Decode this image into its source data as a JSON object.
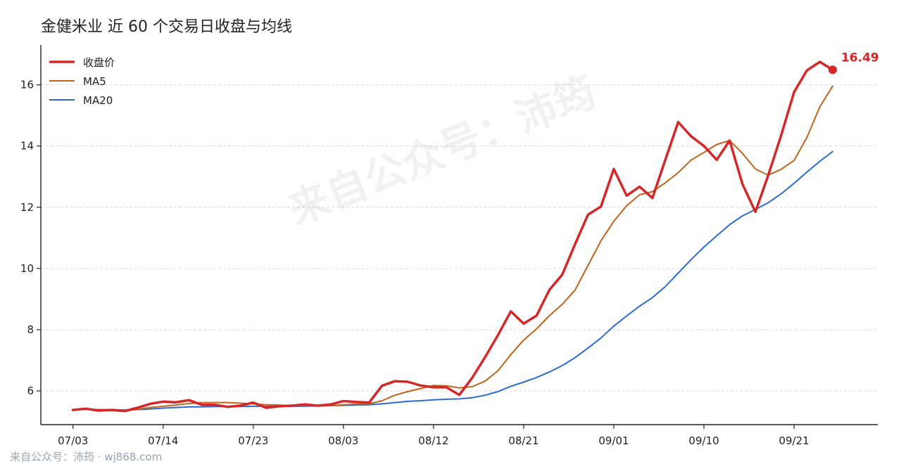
{
  "title": "金健米业 近 60 个交易日收盘与均线",
  "watermark": "来自公众号：沛筠",
  "footer": "来自公众号：沛筠 · wj868.com",
  "chart_data": {
    "type": "line",
    "title": "金健米业 近 60 个交易日收盘与均线",
    "ylim": [
      4.9,
      17.3
    ],
    "xlim": [
      -2.5,
      62.5
    ],
    "yticks": [
      6,
      8,
      10,
      12,
      14,
      16
    ],
    "xticks": [
      {
        "index": 0,
        "label": "07/03"
      },
      {
        "index": 7,
        "label": "07/14"
      },
      {
        "index": 14,
        "label": "07/23"
      },
      {
        "index": 21,
        "label": "08/03"
      },
      {
        "index": 28,
        "label": "08/12"
      },
      {
        "index": 35,
        "label": "08/21"
      },
      {
        "index": 42,
        "label": "09/01"
      },
      {
        "index": 49,
        "label": "09/10"
      },
      {
        "index": 56,
        "label": "09/21"
      }
    ],
    "grid": "horizontal",
    "legend_position": "top-left",
    "last_label": "16.49",
    "series": [
      {
        "name": "收盘价",
        "color": "#d62728",
        "width": 3.5,
        "values": [
          5.38,
          5.42,
          5.36,
          5.38,
          5.34,
          5.45,
          5.58,
          5.65,
          5.63,
          5.7,
          5.55,
          5.55,
          5.48,
          5.52,
          5.62,
          5.45,
          5.5,
          5.52,
          5.56,
          5.52,
          5.56,
          5.67,
          5.64,
          5.62,
          6.17,
          6.32,
          6.3,
          6.18,
          6.12,
          6.12,
          5.87,
          6.43,
          7.1,
          7.82,
          8.6,
          8.2,
          8.46,
          9.3,
          9.8,
          10.8,
          11.76,
          12.02,
          13.25,
          12.38,
          12.67,
          12.3,
          13.55,
          14.78,
          14.32,
          14.0,
          13.55,
          14.18,
          12.75,
          11.85,
          13.05,
          14.35,
          15.76,
          16.47,
          16.75,
          16.49
        ]
      },
      {
        "name": "MA5",
        "color": "#c0631a",
        "width": 2,
        "values": [
          5.38,
          5.4,
          5.39,
          5.38,
          5.37,
          5.4,
          5.46,
          5.5,
          5.54,
          5.59,
          5.62,
          5.62,
          5.62,
          5.6,
          5.58,
          5.55,
          5.54,
          5.51,
          5.52,
          5.51,
          5.52,
          5.55,
          5.57,
          5.58,
          5.68,
          5.86,
          5.98,
          6.08,
          6.18,
          6.17,
          6.1,
          6.14,
          6.32,
          6.66,
          7.19,
          7.66,
          8.03,
          8.46,
          8.83,
          9.3,
          10.1,
          10.9,
          11.54,
          12.05,
          12.41,
          12.51,
          12.8,
          13.13,
          13.54,
          13.79,
          14.05,
          14.18,
          13.76,
          13.25,
          13.05,
          13.24,
          13.53,
          14.28,
          15.28,
          15.96
        ]
      },
      {
        "name": "MA20",
        "color": "#2b6ad6",
        "width": 2,
        "values": [
          5.38,
          5.4,
          5.39,
          5.39,
          5.38,
          5.39,
          5.41,
          5.44,
          5.46,
          5.48,
          5.48,
          5.49,
          5.49,
          5.49,
          5.5,
          5.5,
          5.5,
          5.5,
          5.5,
          5.51,
          5.52,
          5.53,
          5.54,
          5.55,
          5.58,
          5.62,
          5.66,
          5.68,
          5.71,
          5.73,
          5.74,
          5.78,
          5.86,
          5.98,
          6.15,
          6.29,
          6.44,
          6.62,
          6.83,
          7.09,
          7.4,
          7.73,
          8.12,
          8.45,
          8.77,
          9.05,
          9.41,
          9.85,
          10.29,
          10.7,
          11.07,
          11.43,
          11.72,
          11.93,
          12.15,
          12.44,
          12.78,
          13.15,
          13.5,
          13.82
        ]
      }
    ]
  }
}
